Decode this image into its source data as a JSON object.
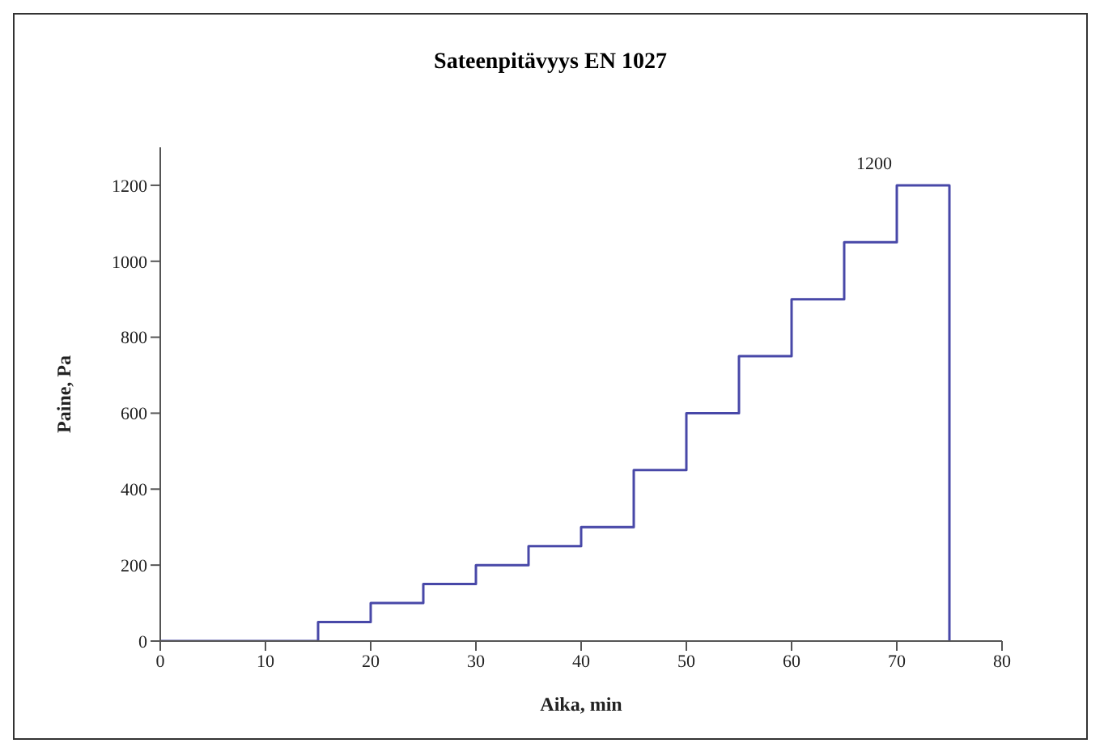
{
  "chart_data": {
    "type": "step",
    "title": "Sateenpitävyys EN 1027",
    "xlabel": "Aika, min",
    "ylabel": "Paine, Pa",
    "x": [
      0,
      15,
      20,
      25,
      30,
      35,
      40,
      45,
      50,
      55,
      60,
      65,
      70,
      75
    ],
    "series": [
      {
        "color": "#4848a8",
        "values": [
          0,
          50,
          100,
          150,
          200,
          250,
          300,
          450,
          600,
          750,
          900,
          1050,
          1200,
          0
        ]
      }
    ],
    "xlim": [
      0,
      80
    ],
    "xticks": [
      0,
      10,
      20,
      30,
      40,
      50,
      60,
      70,
      80
    ],
    "ylim": [
      0,
      1300
    ],
    "yticks": [
      0,
      200,
      400,
      600,
      800,
      1000,
      1200
    ],
    "grid": false,
    "marker": "none",
    "line_style": "solid",
    "annotations": [
      {
        "text": "1200",
        "x": 70,
        "y": 1200
      }
    ]
  }
}
